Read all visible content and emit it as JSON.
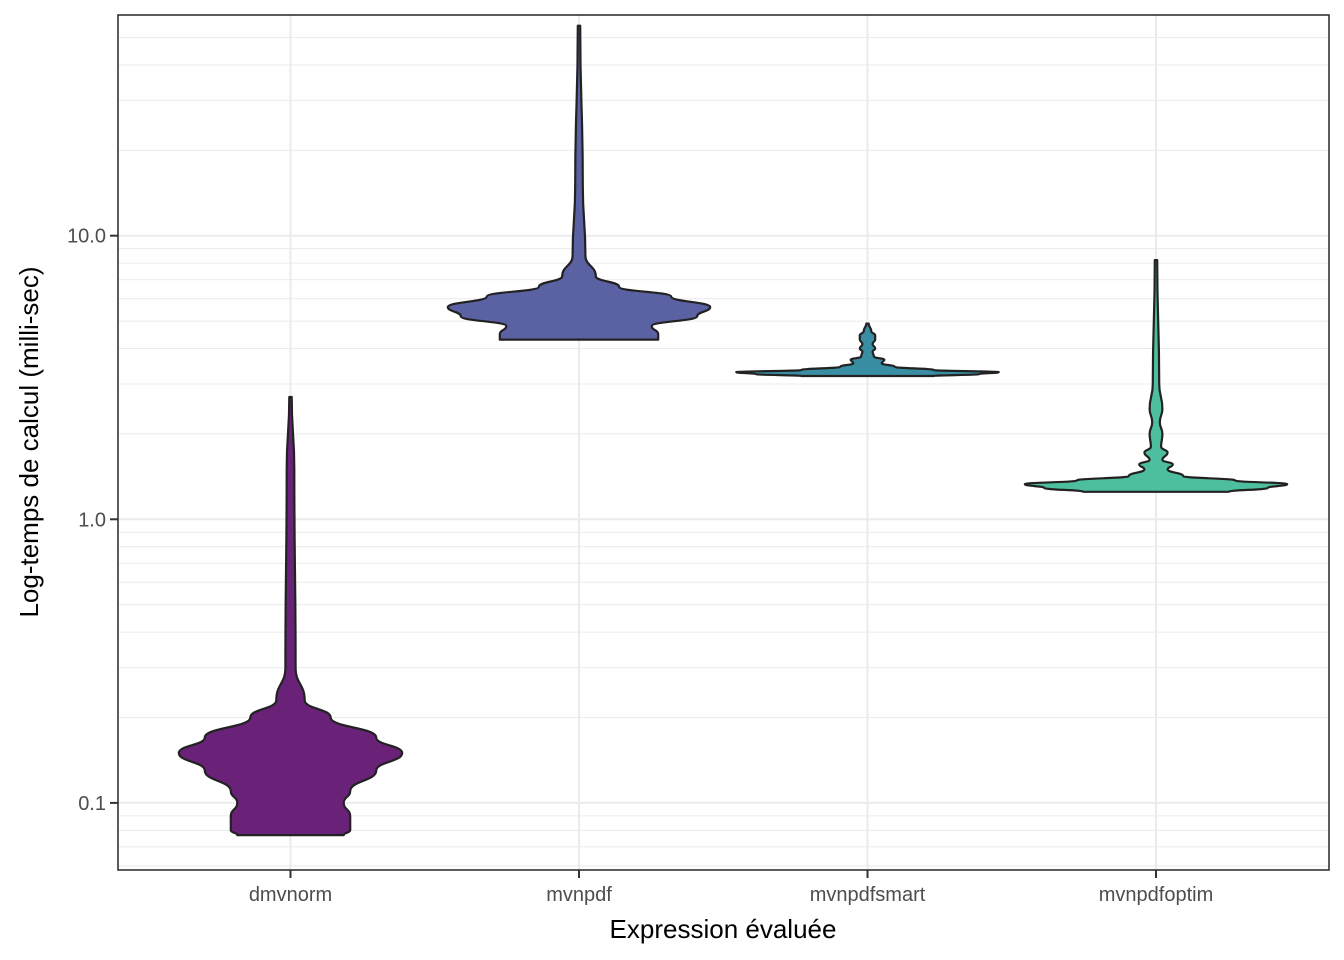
{
  "chart_data": {
    "type": "violin",
    "xlabel": "Expression évaluée",
    "ylabel": "Log-temps de calcul (milli-sec)",
    "y_scale": "log10",
    "ylim": [
      0.058,
      60
    ],
    "y_ticks": [
      {
        "value": 0.1,
        "label": "0.1"
      },
      {
        "value": 1.0,
        "label": "1.0"
      },
      {
        "value": 10.0,
        "label": "10.0"
      }
    ],
    "grid": true,
    "legend": "none",
    "categories": [
      "dmvnorm",
      "mvnpdf",
      "mvnpdfsmart",
      "mvnpdfoptim"
    ],
    "series": [
      {
        "category": "dmvnorm",
        "color": "#6a2279",
        "min": 0.077,
        "max": 2.7,
        "profile": [
          [
            0.077,
            0.4
          ],
          [
            0.08,
            0.45
          ],
          [
            0.09,
            0.45
          ],
          [
            0.1,
            0.4
          ],
          [
            0.11,
            0.45
          ],
          [
            0.13,
            0.65
          ],
          [
            0.15,
            0.85
          ],
          [
            0.17,
            0.65
          ],
          [
            0.2,
            0.3
          ],
          [
            0.23,
            0.1
          ],
          [
            0.3,
            0.03
          ],
          [
            1.5,
            0.02
          ],
          [
            2.7,
            0.0
          ]
        ]
      },
      {
        "category": "mvnpdf",
        "color": "#5b62a3",
        "min": 4.3,
        "max": 55,
        "profile": [
          [
            4.3,
            0.6
          ],
          [
            4.5,
            0.6
          ],
          [
            4.8,
            0.55
          ],
          [
            5.2,
            0.9
          ],
          [
            5.6,
            1.0
          ],
          [
            6.1,
            0.7
          ],
          [
            6.6,
            0.3
          ],
          [
            7.2,
            0.12
          ],
          [
            8.5,
            0.04
          ],
          [
            15,
            0.02
          ],
          [
            55,
            0.0
          ]
        ]
      },
      {
        "category": "mvnpdfsmart",
        "color": "#3a8ea4",
        "min": 3.2,
        "max": 4.9,
        "profile": [
          [
            3.2,
            0.5
          ],
          [
            3.25,
            0.85
          ],
          [
            3.3,
            1.0
          ],
          [
            3.36,
            0.5
          ],
          [
            3.45,
            0.2
          ],
          [
            3.55,
            0.1
          ],
          [
            3.65,
            0.12
          ],
          [
            3.75,
            0.04
          ],
          [
            3.9,
            0.03
          ],
          [
            4.0,
            0.05
          ],
          [
            4.15,
            0.03
          ],
          [
            4.3,
            0.05
          ],
          [
            4.45,
            0.05
          ],
          [
            4.6,
            0.02
          ],
          [
            4.9,
            0.0
          ]
        ]
      },
      {
        "category": "mvnpdfoptim",
        "color": "#4dbf9e",
        "min": 1.25,
        "max": 8.2,
        "profile": [
          [
            1.25,
            0.55
          ],
          [
            1.29,
            0.85
          ],
          [
            1.33,
            1.0
          ],
          [
            1.37,
            0.6
          ],
          [
            1.42,
            0.2
          ],
          [
            1.5,
            0.08
          ],
          [
            1.56,
            0.12
          ],
          [
            1.62,
            0.04
          ],
          [
            1.72,
            0.08
          ],
          [
            1.8,
            0.03
          ],
          [
            2.0,
            0.04
          ],
          [
            2.2,
            0.02
          ],
          [
            2.45,
            0.04
          ],
          [
            3.0,
            0.015
          ],
          [
            8.2,
            0.0
          ]
        ]
      }
    ]
  }
}
